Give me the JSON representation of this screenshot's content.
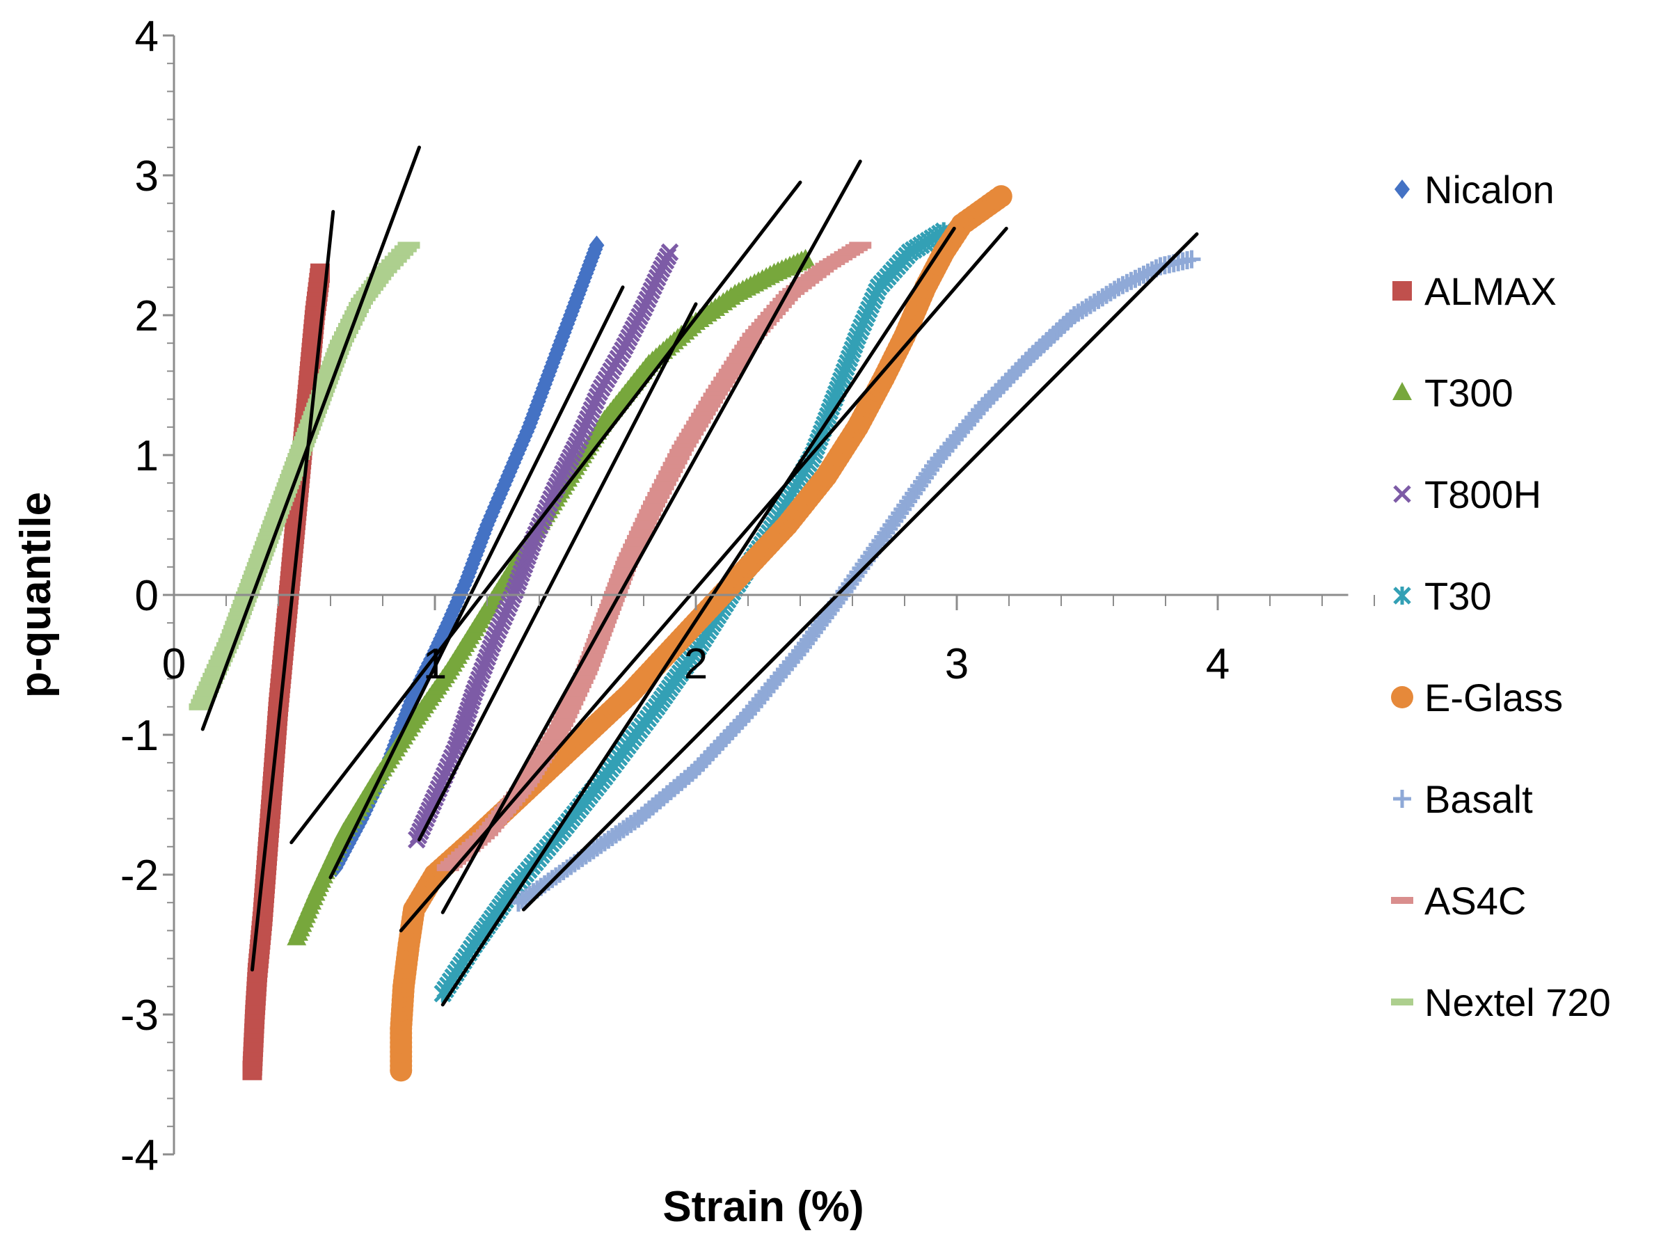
{
  "chart_data": {
    "type": "scatter",
    "title": "",
    "xlabel": "Strain (%)",
    "ylabel": "p-quantile",
    "xlim": [
      0,
      4.5
    ],
    "ylim": [
      -4,
      4
    ],
    "x_ticks": [
      {
        "value": 0,
        "label": "0"
      },
      {
        "value": 1,
        "label": "1"
      },
      {
        "value": 2,
        "label": "2"
      },
      {
        "value": 3,
        "label": "3"
      },
      {
        "value": 4,
        "label": "4"
      }
    ],
    "y_ticks": [
      {
        "value": 4,
        "label": "4"
      },
      {
        "value": 3,
        "label": "3"
      },
      {
        "value": 2,
        "label": "2"
      },
      {
        "value": 1,
        "label": "1"
      },
      {
        "value": 0,
        "label": "0"
      },
      {
        "value": -1,
        "label": "-1"
      },
      {
        "value": -2,
        "label": "-2"
      },
      {
        "value": -3,
        "label": "-3"
      },
      {
        "value": -4,
        "label": "-4"
      }
    ],
    "grid": false,
    "legend_position": "right",
    "series": [
      {
        "name": "Nicalon",
        "color": "#4472C4",
        "marker": "diamond",
        "points": [
          [
            0.62,
            -1.95
          ],
          [
            0.72,
            -1.6
          ],
          [
            0.82,
            -1.2
          ],
          [
            0.92,
            -0.7
          ],
          [
            1.0,
            -0.4
          ],
          [
            1.05,
            -0.2
          ],
          [
            1.12,
            0.1
          ],
          [
            1.2,
            0.5
          ],
          [
            1.28,
            0.85
          ],
          [
            1.36,
            1.2
          ],
          [
            1.44,
            1.6
          ],
          [
            1.52,
            2.0
          ],
          [
            1.58,
            2.3
          ],
          [
            1.62,
            2.5
          ]
        ],
        "fit": [
          [
            0.6,
            -2.02
          ],
          [
            1.72,
            2.2
          ]
        ]
      },
      {
        "name": "ALMAX",
        "color": "#C0504D",
        "marker": "square",
        "points": [
          [
            0.3,
            -3.4
          ],
          [
            0.31,
            -3.0
          ],
          [
            0.32,
            -2.7
          ],
          [
            0.34,
            -2.3
          ],
          [
            0.36,
            -1.8
          ],
          [
            0.38,
            -1.3
          ],
          [
            0.4,
            -0.8
          ],
          [
            0.42,
            -0.4
          ],
          [
            0.44,
            0.0
          ],
          [
            0.46,
            0.4
          ],
          [
            0.48,
            0.8
          ],
          [
            0.5,
            1.2
          ],
          [
            0.52,
            1.6
          ],
          [
            0.54,
            2.0
          ],
          [
            0.56,
            2.3
          ]
        ],
        "fit": [
          [
            0.3,
            -2.68
          ],
          [
            0.61,
            2.74
          ]
        ]
      },
      {
        "name": "T300",
        "color": "#77A73C",
        "marker": "triangle",
        "points": [
          [
            0.47,
            -2.45
          ],
          [
            0.55,
            -2.1
          ],
          [
            0.65,
            -1.7
          ],
          [
            0.78,
            -1.3
          ],
          [
            0.92,
            -0.9
          ],
          [
            1.05,
            -0.55
          ],
          [
            1.2,
            -0.1
          ],
          [
            1.35,
            0.35
          ],
          [
            1.5,
            0.8
          ],
          [
            1.65,
            1.25
          ],
          [
            1.82,
            1.65
          ],
          [
            2.0,
            1.95
          ],
          [
            2.15,
            2.15
          ],
          [
            2.3,
            2.3
          ],
          [
            2.42,
            2.4
          ]
        ],
        "fit": [
          [
            0.45,
            -1.77
          ],
          [
            2.4,
            2.95
          ]
        ]
      },
      {
        "name": "T800H",
        "color": "#7D5BA6",
        "marker": "x",
        "points": [
          [
            0.93,
            -1.75
          ],
          [
            1.0,
            -1.45
          ],
          [
            1.08,
            -1.1
          ],
          [
            1.15,
            -0.7
          ],
          [
            1.22,
            -0.35
          ],
          [
            1.3,
            0.0
          ],
          [
            1.38,
            0.4
          ],
          [
            1.46,
            0.75
          ],
          [
            1.55,
            1.1
          ],
          [
            1.63,
            1.45
          ],
          [
            1.72,
            1.75
          ],
          [
            1.8,
            2.05
          ],
          [
            1.86,
            2.3
          ],
          [
            1.9,
            2.45
          ]
        ],
        "fit": [
          [
            0.94,
            -1.75
          ],
          [
            2.0,
            2.08
          ]
        ]
      },
      {
        "name": "T30",
        "color": "#33A0B5",
        "marker": "asterisk",
        "points": [
          [
            1.03,
            -2.85
          ],
          [
            1.15,
            -2.5
          ],
          [
            1.3,
            -2.1
          ],
          [
            1.48,
            -1.7
          ],
          [
            1.65,
            -1.3
          ],
          [
            1.85,
            -0.8
          ],
          [
            2.0,
            -0.4
          ],
          [
            2.15,
            0.05
          ],
          [
            2.3,
            0.5
          ],
          [
            2.45,
            1.0
          ],
          [
            2.55,
            1.5
          ],
          [
            2.62,
            1.85
          ],
          [
            2.7,
            2.2
          ],
          [
            2.82,
            2.45
          ],
          [
            2.95,
            2.6
          ]
        ],
        "fit": [
          [
            1.03,
            -2.93
          ],
          [
            2.99,
            2.62
          ]
        ]
      },
      {
        "name": "E-Glass",
        "color": "#E6893A",
        "marker": "circle",
        "points": [
          [
            0.87,
            -3.4
          ],
          [
            0.87,
            -3.1
          ],
          [
            0.88,
            -2.8
          ],
          [
            0.9,
            -2.5
          ],
          [
            0.92,
            -2.25
          ],
          [
            1.0,
            -2.0
          ],
          [
            1.15,
            -1.75
          ],
          [
            1.35,
            -1.4
          ],
          [
            1.55,
            -1.05
          ],
          [
            1.75,
            -0.7
          ],
          [
            1.95,
            -0.3
          ],
          [
            2.15,
            0.1
          ],
          [
            2.35,
            0.5
          ],
          [
            2.5,
            0.85
          ],
          [
            2.62,
            1.2
          ],
          [
            2.72,
            1.55
          ],
          [
            2.8,
            1.85
          ],
          [
            2.88,
            2.2
          ],
          [
            2.95,
            2.45
          ],
          [
            3.02,
            2.65
          ],
          [
            3.17,
            2.85
          ]
        ],
        "fit": [
          [
            0.87,
            -2.4
          ],
          [
            3.19,
            2.62
          ]
        ]
      },
      {
        "name": "Basalt",
        "color": "#8FA9D7",
        "marker": "plus",
        "points": [
          [
            1.32,
            -2.2
          ],
          [
            1.55,
            -1.9
          ],
          [
            1.78,
            -1.6
          ],
          [
            2.0,
            -1.25
          ],
          [
            2.2,
            -0.85
          ],
          [
            2.4,
            -0.4
          ],
          [
            2.58,
            0.05
          ],
          [
            2.75,
            0.5
          ],
          [
            2.92,
            0.95
          ],
          [
            3.1,
            1.35
          ],
          [
            3.28,
            1.7
          ],
          [
            3.45,
            2.0
          ],
          [
            3.62,
            2.2
          ],
          [
            3.78,
            2.35
          ],
          [
            3.9,
            2.4
          ]
        ],
        "fit": [
          [
            1.34,
            -2.25
          ],
          [
            3.92,
            2.58
          ]
        ]
      },
      {
        "name": "AS4C",
        "color": "#D98E8D",
        "marker": "dash",
        "points": [
          [
            1.05,
            -1.95
          ],
          [
            1.2,
            -1.7
          ],
          [
            1.35,
            -1.35
          ],
          [
            1.48,
            -0.95
          ],
          [
            1.58,
            -0.55
          ],
          [
            1.66,
            -0.15
          ],
          [
            1.74,
            0.25
          ],
          [
            1.84,
            0.65
          ],
          [
            1.95,
            1.05
          ],
          [
            2.08,
            1.45
          ],
          [
            2.22,
            1.85
          ],
          [
            2.36,
            2.15
          ],
          [
            2.5,
            2.35
          ],
          [
            2.63,
            2.5
          ]
        ],
        "fit": [
          [
            1.03,
            -2.27
          ],
          [
            2.63,
            3.1
          ]
        ]
      },
      {
        "name": "Nextel 720",
        "color": "#ADCF8E",
        "marker": "dash",
        "points": [
          [
            0.1,
            -0.8
          ],
          [
            0.16,
            -0.55
          ],
          [
            0.22,
            -0.3
          ],
          [
            0.28,
            0.0
          ],
          [
            0.34,
            0.3
          ],
          [
            0.4,
            0.6
          ],
          [
            0.46,
            0.9
          ],
          [
            0.52,
            1.2
          ],
          [
            0.58,
            1.5
          ],
          [
            0.64,
            1.8
          ],
          [
            0.72,
            2.1
          ],
          [
            0.8,
            2.3
          ],
          [
            0.9,
            2.5
          ]
        ],
        "fit": [
          [
            0.11,
            -0.96
          ],
          [
            0.94,
            3.2
          ]
        ]
      }
    ]
  }
}
